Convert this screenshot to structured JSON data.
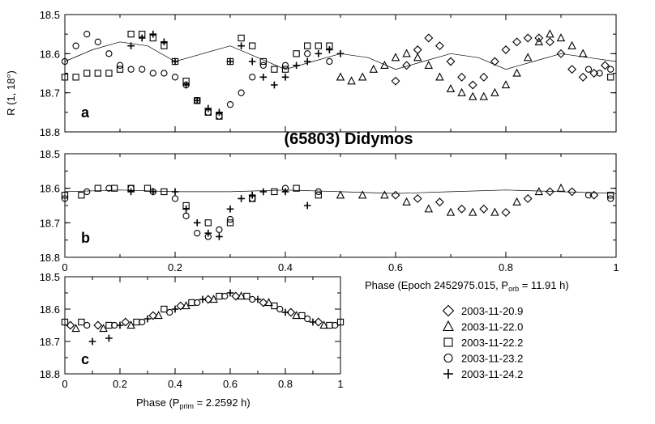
{
  "figure": {
    "title": "(65803) Didymos",
    "ylabel": "R (1, 18°)",
    "xlabel_orbital": "Phase (Epoch 2452975.015, P",
    "xlabel_orbital_sub": "orb",
    "xlabel_orbital_tail": " = 11.91 h)",
    "xlabel_primary": "Phase (P",
    "xlabel_primary_sub": "prim",
    "xlabel_primary_tail": " = 2.2592 h)"
  },
  "legend": [
    {
      "marker": "diamond",
      "label": "2003-11-20.9"
    },
    {
      "marker": "triangle",
      "label": "2003-11-22.0"
    },
    {
      "marker": "square",
      "label": "2003-11-22.2"
    },
    {
      "marker": "circle",
      "label": "2003-11-23.2"
    },
    {
      "marker": "plus",
      "label": "2003-11-24.2"
    }
  ],
  "chart_data": [
    {
      "type": "scatter",
      "panel_label": "a",
      "xlim": [
        0,
        1
      ],
      "ylim": [
        18.8,
        18.5
      ],
      "y_inverted": true,
      "x_ticks": [],
      "y_ticks": [
        "18.5",
        "18.6",
        "18.7",
        "18.8"
      ],
      "model_curve": {
        "x": [
          0,
          0.05,
          0.1,
          0.15,
          0.2,
          0.25,
          0.3,
          0.35,
          0.4,
          0.45,
          0.5,
          0.55,
          0.6,
          0.65,
          0.7,
          0.75,
          0.8,
          0.85,
          0.9,
          0.95,
          1
        ],
        "y": [
          18.62,
          18.59,
          18.57,
          18.58,
          18.62,
          18.6,
          18.58,
          18.61,
          18.64,
          18.62,
          18.6,
          18.61,
          18.64,
          18.62,
          18.6,
          18.61,
          18.64,
          18.62,
          18.6,
          18.61,
          18.62
        ]
      },
      "series": [
        {
          "name": "2003-11-20.9",
          "marker": "diamond",
          "x": [
            0.6,
            0.62,
            0.64,
            0.66,
            0.68,
            0.7,
            0.72,
            0.74,
            0.76,
            0.78,
            0.8,
            0.82,
            0.84,
            0.86,
            0.88,
            0.9,
            0.92,
            0.94,
            0.96,
            0.98
          ],
          "y": [
            18.67,
            18.63,
            18.59,
            18.56,
            18.58,
            18.62,
            18.66,
            18.68,
            18.66,
            18.62,
            18.59,
            18.57,
            18.56,
            18.56,
            18.57,
            18.6,
            18.64,
            18.66,
            18.65,
            18.63
          ]
        },
        {
          "name": "2003-11-22.0",
          "marker": "triangle",
          "x": [
            0.5,
            0.52,
            0.54,
            0.56,
            0.58,
            0.6,
            0.62,
            0.64,
            0.66,
            0.68,
            0.7,
            0.72,
            0.74,
            0.76,
            0.78,
            0.8,
            0.82,
            0.84,
            0.86,
            0.88,
            0.9,
            0.92,
            0.94
          ],
          "y": [
            18.66,
            18.67,
            18.66,
            18.64,
            18.63,
            18.61,
            18.6,
            18.61,
            18.63,
            18.66,
            18.69,
            18.7,
            18.71,
            18.71,
            18.7,
            18.68,
            18.65,
            18.61,
            18.57,
            18.55,
            18.56,
            18.58,
            18.6
          ]
        },
        {
          "name": "2003-11-22.2",
          "marker": "square",
          "x": [
            0,
            0.02,
            0.04,
            0.06,
            0.08,
            0.1,
            0.12,
            0.14,
            0.16,
            0.18,
            0.2,
            0.22,
            0.24,
            0.26,
            0.28,
            0.3,
            0.32,
            0.34,
            0.36,
            0.38,
            0.4,
            0.42,
            0.44,
            0.46,
            0.48,
            0.99
          ],
          "y": [
            18.66,
            18.66,
            18.65,
            18.65,
            18.65,
            18.64,
            18.55,
            18.55,
            18.56,
            18.58,
            18.62,
            18.67,
            18.72,
            18.75,
            18.76,
            18.62,
            18.56,
            18.58,
            18.62,
            18.64,
            18.64,
            18.6,
            18.58,
            18.58,
            18.58,
            18.66
          ]
        },
        {
          "name": "2003-11-23.2",
          "marker": "circle",
          "x": [
            0,
            0.02,
            0.04,
            0.06,
            0.08,
            0.1,
            0.12,
            0.14,
            0.16,
            0.18,
            0.2,
            0.22,
            0.24,
            0.26,
            0.28,
            0.3,
            0.32,
            0.34,
            0.36,
            0.4,
            0.44,
            0.48,
            0.95,
            0.97,
            0.99
          ],
          "y": [
            18.62,
            18.58,
            18.55,
            18.57,
            18.6,
            18.63,
            18.64,
            18.64,
            18.65,
            18.65,
            18.66,
            18.68,
            18.72,
            18.75,
            18.76,
            18.73,
            18.7,
            18.66,
            18.63,
            18.63,
            18.6,
            18.62,
            18.64,
            18.65,
            18.64
          ]
        },
        {
          "name": "2003-11-24.2",
          "marker": "plus",
          "x": [
            0.12,
            0.14,
            0.16,
            0.18,
            0.2,
            0.22,
            0.24,
            0.26,
            0.28,
            0.3,
            0.32,
            0.34,
            0.36,
            0.38,
            0.4,
            0.42,
            0.44,
            0.46,
            0.48,
            0.5
          ],
          "y": [
            18.58,
            18.56,
            18.55,
            18.57,
            18.62,
            18.68,
            18.72,
            18.74,
            18.75,
            18.62,
            18.58,
            18.62,
            18.66,
            18.68,
            18.66,
            18.63,
            18.62,
            18.6,
            18.59,
            18.6
          ]
        }
      ]
    },
    {
      "type": "scatter",
      "panel_label": "b",
      "xlim": [
        0,
        1
      ],
      "ylim": [
        18.8,
        18.5
      ],
      "y_inverted": true,
      "x_ticks": [
        "0",
        "0.2",
        "0.4",
        "0.6",
        "0.8",
        "1"
      ],
      "y_ticks": [
        "18.5",
        "18.6",
        "18.7",
        "18.8"
      ],
      "model_curve": {
        "x": [
          0,
          0.1,
          0.2,
          0.3,
          0.4,
          0.5,
          0.6,
          0.7,
          0.8,
          0.9,
          1
        ],
        "y": [
          18.61,
          18.605,
          18.61,
          18.61,
          18.605,
          18.61,
          18.615,
          18.61,
          18.605,
          18.61,
          18.615
        ]
      },
      "series": [
        {
          "name": "2003-11-20.9",
          "marker": "diamond",
          "x": [
            0.6,
            0.64,
            0.68,
            0.72,
            0.76,
            0.8,
            0.84,
            0.88,
            0.92,
            0.96
          ],
          "y": [
            18.62,
            18.63,
            18.64,
            18.66,
            18.66,
            18.67,
            18.63,
            18.61,
            18.61,
            18.62
          ]
        },
        {
          "name": "2003-11-22.0",
          "marker": "triangle",
          "x": [
            0.5,
            0.54,
            0.58,
            0.62,
            0.66,
            0.7,
            0.74,
            0.78,
            0.82,
            0.86,
            0.9
          ],
          "y": [
            18.62,
            18.62,
            18.62,
            18.64,
            18.66,
            18.67,
            18.67,
            18.67,
            18.64,
            18.61,
            18.6
          ]
        },
        {
          "name": "2003-11-22.2",
          "marker": "square",
          "x": [
            0,
            0.03,
            0.06,
            0.09,
            0.12,
            0.15,
            0.18,
            0.22,
            0.26,
            0.3,
            0.34,
            0.38,
            0.42,
            0.46,
            0.99
          ],
          "y": [
            18.62,
            18.62,
            18.6,
            18.6,
            18.6,
            18.6,
            18.61,
            18.65,
            18.7,
            18.7,
            18.63,
            18.61,
            18.6,
            18.62,
            18.62
          ]
        },
        {
          "name": "2003-11-23.2",
          "marker": "circle",
          "x": [
            0,
            0.04,
            0.08,
            0.12,
            0.16,
            0.2,
            0.22,
            0.24,
            0.26,
            0.28,
            0.3,
            0.34,
            0.4,
            0.46,
            0.95,
            0.99
          ],
          "y": [
            18.63,
            18.61,
            18.6,
            18.6,
            18.61,
            18.63,
            18.68,
            18.73,
            18.74,
            18.72,
            18.69,
            18.63,
            18.6,
            18.61,
            18.62,
            18.63
          ]
        },
        {
          "name": "2003-11-24.2",
          "marker": "plus",
          "x": [
            0.12,
            0.16,
            0.2,
            0.22,
            0.24,
            0.26,
            0.28,
            0.3,
            0.32,
            0.34,
            0.36,
            0.4,
            0.44
          ],
          "y": [
            18.61,
            18.61,
            18.61,
            18.66,
            18.7,
            18.73,
            18.74,
            18.66,
            18.63,
            18.62,
            18.61,
            18.61,
            18.65
          ]
        }
      ]
    },
    {
      "type": "scatter",
      "panel_label": "c",
      "xlim": [
        0,
        1
      ],
      "ylim": [
        18.8,
        18.5
      ],
      "y_inverted": true,
      "x_ticks": [
        "0",
        "0.2",
        "0.4",
        "0.6",
        "0.8",
        "1"
      ],
      "y_ticks": [
        "18.5",
        "18.6",
        "18.7",
        "18.8"
      ],
      "series": [
        {
          "name": "2003-11-20.9",
          "marker": "diamond",
          "x": [
            0.02,
            0.12,
            0.22,
            0.32,
            0.42,
            0.52,
            0.62,
            0.72,
            0.82,
            0.92
          ],
          "y": [
            18.65,
            18.65,
            18.64,
            18.62,
            18.59,
            18.57,
            18.56,
            18.58,
            18.61,
            18.64
          ]
        },
        {
          "name": "2003-11-22.0",
          "marker": "triangle",
          "x": [
            0.04,
            0.14,
            0.24,
            0.34,
            0.44,
            0.54,
            0.64,
            0.74,
            0.84,
            0.94
          ],
          "y": [
            18.66,
            18.66,
            18.65,
            18.62,
            18.59,
            18.57,
            18.56,
            18.58,
            18.62,
            18.65
          ]
        },
        {
          "name": "2003-11-22.2",
          "marker": "square",
          "x": [
            0,
            0.06,
            0.16,
            0.26,
            0.36,
            0.46,
            0.56,
            0.66,
            0.76,
            0.86,
            0.96,
            1
          ],
          "y": [
            18.64,
            18.64,
            18.65,
            18.64,
            18.6,
            18.58,
            18.56,
            18.56,
            18.59,
            18.62,
            18.65,
            18.64
          ]
        },
        {
          "name": "2003-11-23.2",
          "marker": "circle",
          "x": [
            0.08,
            0.18,
            0.28,
            0.38,
            0.48,
            0.58,
            0.68,
            0.78,
            0.88,
            0.98
          ],
          "y": [
            18.65,
            18.65,
            18.64,
            18.61,
            18.58,
            18.56,
            18.57,
            18.6,
            18.63,
            18.65
          ]
        },
        {
          "name": "2003-11-24.2",
          "marker": "plus",
          "x": [
            0.1,
            0.16,
            0.2,
            0.3,
            0.4,
            0.5,
            0.6,
            0.7,
            0.8,
            0.9
          ],
          "y": [
            18.7,
            18.69,
            18.65,
            18.63,
            18.6,
            18.57,
            18.55,
            18.57,
            18.61,
            18.64
          ]
        }
      ]
    }
  ]
}
